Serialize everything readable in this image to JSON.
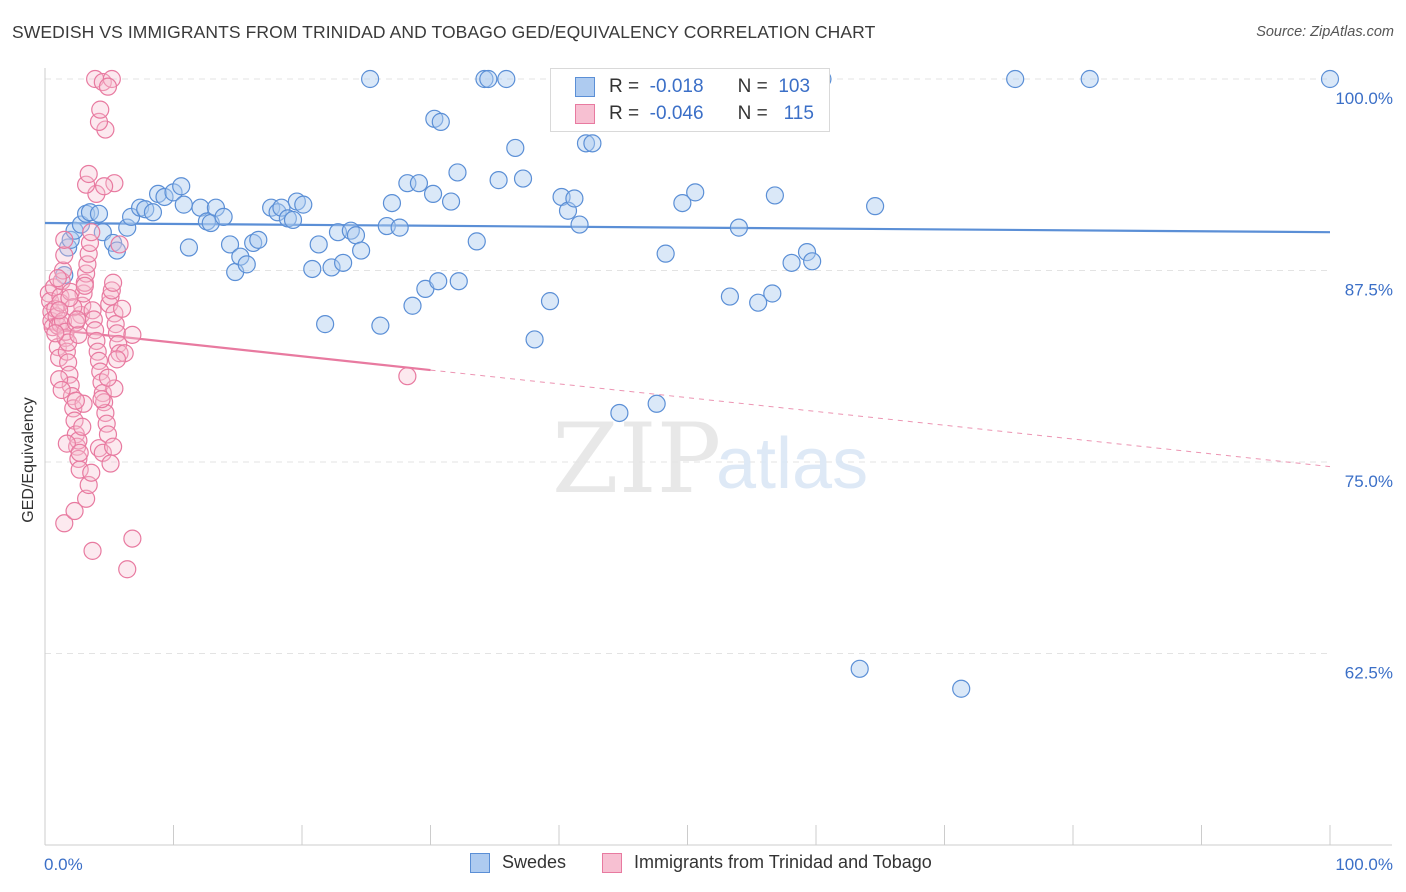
{
  "title": "SWEDISH VS IMMIGRANTS FROM TRINIDAD AND TOBAGO GED/EQUIVALENCY CORRELATION CHART",
  "source": "Source: ZipAtlas.com",
  "watermark": {
    "zip": "ZIP",
    "atlas": "atlas"
  },
  "legend": {
    "r_label": "R =",
    "n_label": "N =",
    "rows": [
      {
        "r": "-0.018",
        "n": "103",
        "color": "#5b8fd6",
        "fill": "#aecbf0"
      },
      {
        "r": "-0.046",
        "n": "115",
        "color": "#e87aa0",
        "fill": "#f7c0d2"
      }
    ]
  },
  "bottom_legend": [
    "Swedes",
    "Immigrants from Trinidad and Tobago"
  ],
  "chart_data": {
    "type": "scatter",
    "ylabel": "GED/Equivalency",
    "xlim": [
      0,
      100
    ],
    "ylim": [
      50,
      100
    ],
    "x_tick_labels": [
      "0.0%",
      "100.0%"
    ],
    "y_ticks": [
      62.5,
      75.0,
      87.5,
      100.0
    ],
    "y_tick_labels": [
      "62.5%",
      "75.0%",
      "87.5%",
      "100.0%"
    ],
    "grid": true,
    "series": [
      {
        "name": "Swedes",
        "color": "#5b8fd6",
        "trend": {
          "x": [
            0,
            100
          ],
          "y": [
            90.6,
            90.0
          ],
          "dashed_from": null
        },
        "points": [
          [
            1.5,
            87.2
          ],
          [
            1.8,
            89.0
          ],
          [
            2.0,
            89.5
          ],
          [
            2.3,
            90.1
          ],
          [
            2.8,
            90.5
          ],
          [
            3.2,
            91.2
          ],
          [
            3.5,
            91.3
          ],
          [
            4.2,
            91.2
          ],
          [
            4.5,
            90.0
          ],
          [
            5.3,
            89.3
          ],
          [
            5.6,
            88.8
          ],
          [
            6.4,
            90.3
          ],
          [
            6.7,
            91.0
          ],
          [
            7.4,
            91.6
          ],
          [
            7.8,
            91.5
          ],
          [
            8.4,
            91.3
          ],
          [
            8.8,
            92.5
          ],
          [
            9.3,
            92.3
          ],
          [
            10.0,
            92.6
          ],
          [
            10.6,
            93.0
          ],
          [
            10.8,
            91.8
          ],
          [
            11.2,
            89.0
          ],
          [
            12.1,
            91.6
          ],
          [
            12.6,
            90.7
          ],
          [
            12.9,
            90.6
          ],
          [
            13.3,
            91.6
          ],
          [
            13.9,
            91.0
          ],
          [
            14.4,
            89.2
          ],
          [
            14.8,
            87.4
          ],
          [
            15.2,
            88.4
          ],
          [
            15.7,
            87.9
          ],
          [
            16.2,
            89.3
          ],
          [
            16.6,
            89.5
          ],
          [
            17.6,
            91.6
          ],
          [
            18.1,
            91.3
          ],
          [
            18.4,
            91.6
          ],
          [
            18.9,
            90.9
          ],
          [
            19.3,
            90.8
          ],
          [
            19.6,
            92.0
          ],
          [
            20.1,
            91.8
          ],
          [
            20.8,
            87.6
          ],
          [
            21.3,
            89.2
          ],
          [
            21.8,
            84.0
          ],
          [
            22.3,
            87.7
          ],
          [
            22.8,
            90.0
          ],
          [
            23.2,
            88.0
          ],
          [
            23.8,
            90.1
          ],
          [
            24.2,
            89.8
          ],
          [
            24.6,
            88.8
          ],
          [
            25.3,
            100.0
          ],
          [
            26.1,
            83.9
          ],
          [
            26.6,
            90.4
          ],
          [
            27.0,
            91.9
          ],
          [
            27.6,
            90.3
          ],
          [
            28.2,
            93.2
          ],
          [
            28.6,
            85.2
          ],
          [
            29.1,
            93.2
          ],
          [
            29.6,
            86.3
          ],
          [
            30.2,
            92.5
          ],
          [
            30.6,
            86.8
          ],
          [
            30.3,
            97.4
          ],
          [
            30.8,
            97.2
          ],
          [
            31.6,
            92.0
          ],
          [
            32.1,
            93.9
          ],
          [
            32.2,
            86.8
          ],
          [
            33.6,
            89.4
          ],
          [
            34.2,
            100.0
          ],
          [
            34.5,
            100.0
          ],
          [
            35.3,
            93.4
          ],
          [
            35.9,
            100.0
          ],
          [
            36.6,
            95.5
          ],
          [
            37.2,
            93.5
          ],
          [
            38.1,
            83.0
          ],
          [
            39.3,
            85.5
          ],
          [
            40.2,
            92.3
          ],
          [
            40.7,
            91.4
          ],
          [
            41.2,
            92.2
          ],
          [
            41.6,
            90.5
          ],
          [
            42.1,
            95.8
          ],
          [
            42.6,
            95.8
          ],
          [
            44.7,
            78.2
          ],
          [
            45.6,
            100.0
          ],
          [
            47.6,
            78.8
          ],
          [
            48.3,
            88.6
          ],
          [
            49.6,
            91.9
          ],
          [
            50.6,
            92.6
          ],
          [
            53.3,
            85.8
          ],
          [
            54.0,
            90.3
          ],
          [
            55.5,
            85.4
          ],
          [
            56.6,
            86.0
          ],
          [
            56.8,
            92.4
          ],
          [
            58.1,
            88.0
          ],
          [
            59.3,
            88.7
          ],
          [
            59.7,
            88.1
          ],
          [
            64.6,
            91.7
          ],
          [
            63.4,
            61.5
          ],
          [
            71.3,
            60.2
          ],
          [
            75.5,
            100.0
          ],
          [
            81.3,
            100.0
          ],
          [
            100.0,
            100.0
          ],
          [
            49.0,
            100.0
          ],
          [
            58.0,
            100.0
          ],
          [
            60.5,
            100.0
          ]
        ]
      },
      {
        "name": "Immigrants from Trinidad and Tobago",
        "color": "#e87aa0",
        "trend": {
          "x": [
            0,
            100
          ],
          "y": [
            83.7,
            74.7
          ],
          "dashed_from": 30
        },
        "points": [
          [
            0.3,
            86.0
          ],
          [
            0.4,
            85.5
          ],
          [
            0.5,
            84.8
          ],
          [
            0.5,
            84.2
          ],
          [
            0.6,
            83.8
          ],
          [
            0.7,
            86.4
          ],
          [
            0.8,
            85.0
          ],
          [
            0.9,
            84.5
          ],
          [
            1.0,
            83.9
          ],
          [
            1.0,
            82.5
          ],
          [
            1.1,
            81.8
          ],
          [
            1.2,
            84.0
          ],
          [
            1.2,
            85.8
          ],
          [
            1.3,
            86.8
          ],
          [
            1.4,
            87.5
          ],
          [
            1.5,
            88.5
          ],
          [
            1.5,
            89.5
          ],
          [
            1.6,
            83.1
          ],
          [
            1.7,
            82.2
          ],
          [
            1.8,
            81.5
          ],
          [
            1.9,
            80.7
          ],
          [
            2.0,
            80.0
          ],
          [
            2.1,
            79.3
          ],
          [
            2.2,
            78.5
          ],
          [
            2.3,
            77.7
          ],
          [
            2.4,
            76.8
          ],
          [
            2.5,
            76.0
          ],
          [
            2.6,
            75.2
          ],
          [
            2.7,
            74.5
          ],
          [
            2.8,
            84.6
          ],
          [
            2.9,
            85.2
          ],
          [
            3.0,
            86.0
          ],
          [
            3.1,
            86.7
          ],
          [
            3.2,
            87.3
          ],
          [
            3.3,
            87.9
          ],
          [
            3.4,
            88.6
          ],
          [
            3.5,
            89.3
          ],
          [
            3.6,
            90.0
          ],
          [
            3.7,
            84.9
          ],
          [
            3.8,
            84.3
          ],
          [
            3.9,
            83.6
          ],
          [
            4.0,
            82.9
          ],
          [
            4.1,
            82.2
          ],
          [
            4.2,
            81.6
          ],
          [
            4.3,
            80.9
          ],
          [
            4.4,
            80.2
          ],
          [
            4.5,
            79.5
          ],
          [
            4.6,
            78.9
          ],
          [
            4.7,
            78.2
          ],
          [
            4.8,
            77.5
          ],
          [
            4.9,
            76.8
          ],
          [
            5.0,
            85.3
          ],
          [
            5.1,
            85.8
          ],
          [
            5.2,
            86.2
          ],
          [
            5.3,
            86.7
          ],
          [
            5.4,
            84.7
          ],
          [
            5.5,
            84.0
          ],
          [
            5.6,
            83.4
          ],
          [
            5.7,
            82.7
          ],
          [
            5.8,
            82.1
          ],
          [
            1.0,
            87.0
          ],
          [
            1.2,
            85.4
          ],
          [
            1.4,
            84.2
          ],
          [
            1.6,
            83.5
          ],
          [
            1.8,
            82.8
          ],
          [
            2.0,
            86.1
          ],
          [
            2.2,
            85.1
          ],
          [
            2.4,
            84.1
          ],
          [
            2.6,
            83.3
          ],
          [
            1.1,
            80.4
          ],
          [
            1.3,
            79.7
          ],
          [
            1.5,
            71.0
          ],
          [
            2.3,
            71.8
          ],
          [
            3.2,
            72.6
          ],
          [
            3.4,
            73.5
          ],
          [
            3.6,
            74.3
          ],
          [
            4.2,
            75.9
          ],
          [
            4.5,
            75.6
          ],
          [
            3.7,
            69.2
          ],
          [
            6.8,
            70.0
          ],
          [
            6.4,
            68.0
          ],
          [
            4.0,
            92.5
          ],
          [
            3.2,
            93.1
          ],
          [
            3.4,
            93.8
          ],
          [
            4.7,
            96.7
          ],
          [
            4.2,
            97.2
          ],
          [
            4.3,
            98.0
          ],
          [
            3.9,
            100.0
          ],
          [
            4.5,
            99.8
          ],
          [
            5.2,
            100.0
          ],
          [
            4.9,
            99.5
          ],
          [
            5.4,
            93.2
          ],
          [
            4.6,
            93.0
          ],
          [
            5.8,
            89.2
          ],
          [
            6.0,
            85.0
          ],
          [
            6.8,
            83.3
          ],
          [
            6.2,
            82.1
          ],
          [
            5.4,
            79.8
          ],
          [
            5.6,
            81.7
          ],
          [
            4.9,
            80.5
          ],
          [
            3.0,
            78.8
          ],
          [
            2.6,
            76.4
          ],
          [
            2.9,
            77.3
          ],
          [
            5.1,
            74.9
          ],
          [
            5.3,
            76.0
          ],
          [
            1.7,
            76.2
          ],
          [
            2.7,
            75.6
          ],
          [
            3.1,
            86.5
          ],
          [
            1.9,
            85.7
          ],
          [
            1.1,
            84.9
          ],
          [
            0.8,
            83.4
          ],
          [
            2.5,
            84.3
          ],
          [
            28.2,
            80.6
          ],
          [
            2.4,
            79.0
          ],
          [
            4.4,
            79.1
          ]
        ]
      }
    ]
  }
}
